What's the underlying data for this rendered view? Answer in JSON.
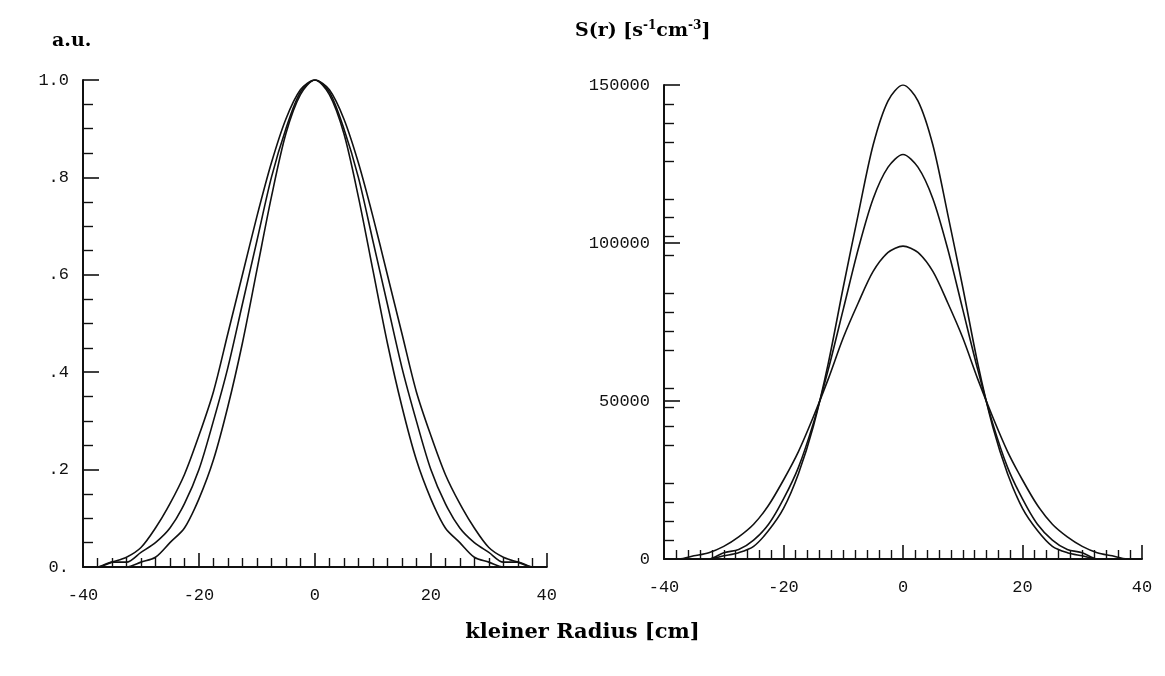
{
  "chart_data": [
    {
      "type": "line",
      "ylabel": "a.u.",
      "xlabel": "kleiner Radius [cm]",
      "x": [
        -40,
        -37.5,
        -35,
        -32.5,
        -30,
        -27.5,
        -25,
        -22.5,
        -20,
        -17.5,
        -15,
        -12.5,
        -10,
        -7.5,
        -5,
        -2.5,
        0,
        2.5,
        5,
        7.5,
        10,
        12.5,
        15,
        17.5,
        20,
        22.5,
        25,
        27.5,
        30,
        32.5,
        35,
        37.5,
        40
      ],
      "xlim": [
        -40,
        40
      ],
      "xticks": [
        -40,
        -20,
        0,
        20,
        40
      ],
      "ylim": [
        0,
        1
      ],
      "yticks": [
        {
          "value": 0,
          "label": "0."
        },
        {
          "value": 0.2,
          "label": ".2"
        },
        {
          "value": 0.4,
          "label": ".4"
        },
        {
          "value": 0.6,
          "label": ".6"
        },
        {
          "value": 0.8,
          "label": ".8"
        },
        {
          "value": 1,
          "label": "1.0"
        }
      ],
      "grid": false,
      "marker": "none",
      "line_style": "solid",
      "series": [
        {
          "color": "#111111",
          "values": [
            0,
            0,
            0.01,
            0.02,
            0.04,
            0.08,
            0.13,
            0.19,
            0.27,
            0.36,
            0.48,
            0.6,
            0.72,
            0.83,
            0.92,
            0.98,
            1,
            0.98,
            0.92,
            0.83,
            0.72,
            0.6,
            0.48,
            0.36,
            0.27,
            0.19,
            0.13,
            0.08,
            0.04,
            0.02,
            0.01,
            0,
            0
          ]
        },
        {
          "color": "#111111",
          "values": [
            0,
            0,
            0.01,
            0.01,
            0.03,
            0.05,
            0.08,
            0.13,
            0.2,
            0.3,
            0.41,
            0.54,
            0.67,
            0.8,
            0.9,
            0.975,
            1,
            0.975,
            0.9,
            0.8,
            0.67,
            0.54,
            0.41,
            0.3,
            0.2,
            0.13,
            0.08,
            0.05,
            0.03,
            0.01,
            0.01,
            0,
            0
          ]
        },
        {
          "color": "#111111",
          "values": [
            0,
            0,
            0,
            0,
            0.01,
            0.02,
            0.05,
            0.08,
            0.14,
            0.22,
            0.33,
            0.46,
            0.61,
            0.76,
            0.89,
            0.97,
            1,
            0.97,
            0.89,
            0.76,
            0.61,
            0.46,
            0.33,
            0.22,
            0.14,
            0.08,
            0.05,
            0.02,
            0.01,
            0,
            0,
            0,
            0
          ]
        }
      ]
    },
    {
      "type": "line",
      "ylabel": "S(r) [s$^{-1}$cm$^{-3}$]",
      "x": [
        -40,
        -37.5,
        -35,
        -32.5,
        -30,
        -27.5,
        -25,
        -22.5,
        -20,
        -17.5,
        -15,
        -12.5,
        -10,
        -7.5,
        -5,
        -2.5,
        0,
        2.5,
        5,
        7.5,
        10,
        12.5,
        15,
        17.5,
        20,
        22.5,
        25,
        27.5,
        30,
        32.5,
        35,
        37.5,
        40
      ],
      "xlim": [
        -40,
        40
      ],
      "xticks": [
        -40,
        -20,
        0,
        20,
        40
      ],
      "ylim": [
        0,
        150000
      ],
      "yticks": [
        0,
        50000,
        100000,
        150000
      ],
      "grid": false,
      "marker": "none",
      "line_style": "solid",
      "series": [
        {
          "color": "#111111",
          "values": [
            0,
            0,
            0,
            0,
            1000,
            2000,
            4000,
            9000,
            16000,
            27000,
            42000,
            62000,
            86000,
            109000,
            131000,
            145000,
            150000,
            145000,
            131000,
            109000,
            86000,
            62000,
            42000,
            27000,
            16000,
            9000,
            4000,
            2000,
            1000,
            0,
            0,
            0,
            0
          ]
        },
        {
          "color": "#111111",
          "values": [
            0,
            0,
            0,
            0,
            2000,
            3000,
            6000,
            11000,
            19000,
            29000,
            43000,
            60000,
            79000,
            98000,
            114000,
            124000,
            128000,
            124000,
            114000,
            98000,
            79000,
            60000,
            43000,
            29000,
            19000,
            11000,
            6000,
            3000,
            2000,
            0,
            0,
            0,
            0
          ]
        },
        {
          "color": "#111111",
          "values": [
            0,
            0,
            1000,
            2000,
            4000,
            7000,
            11000,
            17000,
            25000,
            34000,
            45000,
            57000,
            70000,
            81000,
            91000,
            97000,
            99000,
            97000,
            91000,
            81000,
            70000,
            57000,
            45000,
            34000,
            25000,
            17000,
            11000,
            7000,
            4000,
            2000,
            1000,
            0,
            0
          ]
        }
      ]
    }
  ]
}
